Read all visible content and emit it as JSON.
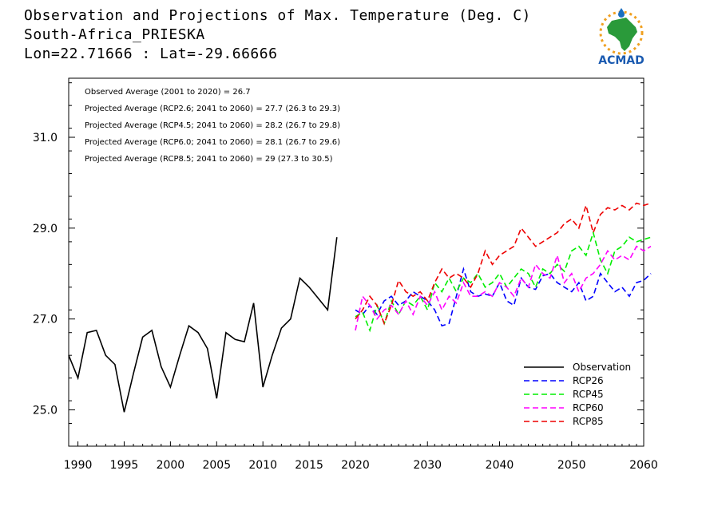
{
  "header": {
    "title": "Observation and Projections of Max. Temperature (Deg. C)",
    "location": "South-Africa_PRIESKA",
    "coords": "Lon=22.71666 : Lat=-29.66666"
  },
  "logo": {
    "text": "ACMAD",
    "icon": "africa-map-sun-logo"
  },
  "colors": {
    "observation": "#000000",
    "rcp26": "#0000ff",
    "rcp45": "#00ee00",
    "rcp60": "#ff00ff",
    "rcp85": "#ee0000"
  },
  "chart_data": {
    "type": "line",
    "title": "Observation and Projections of Max. Temperature (Deg. C)",
    "xlabel": "",
    "ylabel": "",
    "xlim": [
      1989,
      2060
    ],
    "ylim": [
      24.2,
      32.3
    ],
    "grid": false,
    "legend_position": "bottom-right",
    "x_ticks": [
      1990,
      1995,
      2000,
      2005,
      2010,
      2015,
      2020,
      2030,
      2040,
      2050,
      2060
    ],
    "y_ticks": [
      25.0,
      27.0,
      29.0,
      31.0
    ],
    "x_tick_labels": [
      "1990",
      "1995",
      "2000",
      "2005",
      "2010",
      "2015",
      "2020",
      "2030",
      "2040",
      "2050",
      "2060"
    ],
    "y_tick_labels": [
      "25.0",
      "27.0",
      "29.0",
      "31.0"
    ],
    "annotations": [
      "Observed Average (2001 to 2020) = 26.7",
      "Projected Average (RCP2.6; 2041 to 2060) = 27.7 (26.3 to 29.3)",
      "Projected Average (RCP4.5; 2041 to 2060) = 28.2 (26.7 to 29.8)",
      "Projected Average (RCP6.0; 2041 to 2060) = 28.1 (26.7 to 29.6)",
      "Projected Average (RCP8.5; 2041 to 2060) = 29 (27.3 to 30.5)"
    ],
    "series": [
      {
        "name": "Observation",
        "key": "observation",
        "style": "solid",
        "x_start": 1989,
        "values": [
          26.2,
          25.7,
          26.7,
          26.75,
          26.2,
          26.0,
          24.95,
          25.8,
          26.6,
          26.75,
          25.95,
          25.5,
          26.2,
          26.85,
          26.7,
          26.35,
          25.25,
          26.7,
          26.55,
          26.5,
          27.35,
          25.5,
          26.2,
          26.8,
          27.0,
          27.9,
          27.7,
          27.45,
          27.2,
          28.8
        ]
      },
      {
        "name": "RCP26",
        "key": "rcp26",
        "style": "dashed",
        "x_start": 2020,
        "values": [
          27.2,
          27.1,
          27.3,
          27.1,
          27.4,
          27.5,
          27.3,
          27.4,
          27.6,
          27.5,
          27.4,
          27.2,
          26.85,
          26.9,
          27.5,
          28.1,
          27.6,
          27.5,
          27.55,
          27.5,
          27.8,
          27.4,
          27.3,
          27.9,
          27.7,
          27.65,
          27.95,
          28.0,
          27.8,
          27.7,
          27.6,
          27.8,
          27.4,
          27.5,
          28.0,
          27.8,
          27.6,
          27.7,
          27.5,
          27.8,
          27.85,
          28.0
        ]
      },
      {
        "name": "RCP45",
        "key": "rcp45",
        "style": "dashed",
        "x_start": 2020,
        "values": [
          27.05,
          27.15,
          26.75,
          27.3,
          26.9,
          27.4,
          27.1,
          27.4,
          27.3,
          27.5,
          27.2,
          27.8,
          27.6,
          27.9,
          27.6,
          27.9,
          27.8,
          28.0,
          27.7,
          27.8,
          28.0,
          27.7,
          27.9,
          28.1,
          28.0,
          27.7,
          28.1,
          28.0,
          28.2,
          28.05,
          28.5,
          28.6,
          28.4,
          28.9,
          28.3,
          28.0,
          28.5,
          28.6,
          28.8,
          28.7,
          28.75,
          28.8
        ]
      },
      {
        "name": "RCP60",
        "key": "rcp60",
        "style": "dashed",
        "x_start": 2020,
        "values": [
          26.75,
          27.5,
          27.3,
          27.0,
          27.2,
          27.3,
          27.1,
          27.4,
          27.1,
          27.5,
          27.3,
          27.6,
          27.2,
          27.5,
          27.35,
          27.8,
          27.5,
          27.5,
          27.6,
          27.5,
          27.8,
          27.7,
          27.5,
          27.9,
          27.7,
          28.2,
          28.0,
          27.9,
          28.4,
          27.8,
          28.0,
          27.6,
          27.9,
          28.0,
          28.2,
          28.5,
          28.3,
          28.4,
          28.3,
          28.6,
          28.5,
          28.6
        ]
      },
      {
        "name": "RCP85",
        "key": "rcp85",
        "style": "dashed",
        "x_start": 2020,
        "values": [
          27.0,
          27.2,
          27.5,
          27.3,
          26.9,
          27.3,
          27.85,
          27.6,
          27.5,
          27.6,
          27.4,
          27.8,
          28.1,
          27.9,
          28.0,
          27.9,
          27.7,
          28.0,
          28.5,
          28.2,
          28.4,
          28.5,
          28.6,
          29.0,
          28.8,
          28.6,
          28.7,
          28.8,
          28.9,
          29.1,
          29.2,
          29.0,
          29.5,
          28.9,
          29.3,
          29.45,
          29.4,
          29.5,
          29.4,
          29.55,
          29.5,
          29.55
        ]
      }
    ]
  }
}
